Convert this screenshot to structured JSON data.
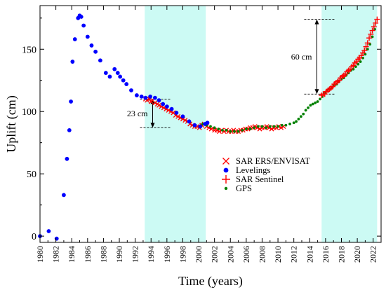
{
  "chart_data": {
    "type": "scatter",
    "title": "",
    "xlabel": "Time (years)",
    "ylabel": "Uplift (cm)",
    "xlim": [
      1980,
      2023
    ],
    "ylim": [
      -5,
      185
    ],
    "x_ticks": [
      1980,
      1982,
      1984,
      1986,
      1988,
      1990,
      1992,
      1994,
      1996,
      1998,
      2000,
      2002,
      2004,
      2006,
      2008,
      2010,
      2012,
      2014,
      2016,
      2018,
      2020,
      2022
    ],
    "y_ticks": [
      0,
      50,
      100,
      150
    ],
    "grid": false,
    "legend_position": "center-right",
    "shaded_periods": [
      {
        "from": 1993.2,
        "to": 2000.9,
        "color": "#ccfaf4"
      },
      {
        "from": 2015.5,
        "to": 2022.5,
        "color": "#ccfaf4"
      }
    ],
    "annotations": [
      {
        "label": "23 cm",
        "x": 1994.2,
        "from": 87,
        "to": 110
      },
      {
        "label": "60 cm",
        "x": 2014.9,
        "from": 114,
        "to": 174
      }
    ],
    "series": [
      {
        "name": "SAR ERS/ENVISAT",
        "marker": "x",
        "color": "#ff0000",
        "x": [
          1993.3,
          1993.5,
          1993.8,
          1994.0,
          1994.2,
          1994.5,
          1994.8,
          1995.0,
          1995.3,
          1995.6,
          1995.9,
          1996.2,
          1996.5,
          1996.8,
          1997.1,
          1997.4,
          1997.7,
          1998.0,
          1998.3,
          1998.6,
          1998.9,
          1999.2,
          1999.5,
          1999.8,
          2000.1,
          2000.4,
          2000.7,
          2001.0,
          2001.3,
          2001.6,
          2002.0,
          2002.3,
          2002.6,
          2002.9,
          2003.2,
          2003.5,
          2003.8,
          2004.1,
          2004.4,
          2004.7,
          2005.0,
          2005.3,
          2005.6,
          2005.9,
          2006.2,
          2006.5,
          2006.8,
          2007.1,
          2007.4,
          2007.7,
          2008.0,
          2008.3,
          2008.6,
          2008.9,
          2009.2,
          2009.5,
          2009.8,
          2010.1,
          2010.4,
          2010.7
        ],
        "y": [
          110,
          109,
          110,
          108,
          109,
          107,
          106,
          105,
          104,
          103,
          102,
          101,
          100,
          99,
          97,
          96,
          95,
          94,
          93,
          92,
          90,
          89,
          88,
          88,
          87,
          89,
          90,
          88,
          87,
          86,
          85,
          85,
          84,
          85,
          84,
          85,
          84,
          84,
          85,
          84,
          84,
          85,
          85,
          86,
          86,
          87,
          87,
          88,
          87,
          86,
          87,
          87,
          88,
          87,
          86,
          87,
          87,
          88,
          87,
          88
        ]
      },
      {
        "name": "Levelings",
        "marker": "circle",
        "color": "#0000ff",
        "x": [
          1980.0,
          1981.1,
          1982.1,
          1983.0,
          1983.4,
          1983.7,
          1983.9,
          1984.1,
          1984.4,
          1984.8,
          1985.0,
          1985.2,
          1985.5,
          1986.0,
          1986.5,
          1987.0,
          1987.6,
          1988.3,
          1988.8,
          1989.4,
          1989.8,
          1990.1,
          1990.5,
          1990.9,
          1991.5,
          1992.2,
          1992.8,
          1993.3,
          1993.9,
          1994.5,
          1995.0,
          1995.5,
          1996.0,
          1996.6,
          1997.2,
          1998.0,
          1998.8,
          1999.5,
          2000.2,
          2000.8,
          2001.1
        ],
        "y": [
          0,
          4,
          -2,
          33,
          62,
          85,
          108,
          140,
          158,
          175,
          177,
          176,
          169,
          160,
          153,
          148,
          141,
          131,
          128,
          134,
          131,
          128,
          125,
          122,
          117,
          113,
          112,
          111,
          112,
          111,
          109,
          106,
          104,
          102,
          99,
          96,
          92,
          89,
          88,
          90,
          91
        ]
      },
      {
        "name": "SAR Sentinel",
        "marker": "plus",
        "color": "#ff0000",
        "x": [
          2015.5,
          2015.7,
          2015.9,
          2016.1,
          2016.3,
          2016.5,
          2016.7,
          2016.9,
          2017.1,
          2017.3,
          2017.5,
          2017.7,
          2017.9,
          2018.1,
          2018.3,
          2018.5,
          2018.7,
          2018.9,
          2019.1,
          2019.3,
          2019.5,
          2019.7,
          2019.9,
          2020.1,
          2020.3,
          2020.5,
          2020.7,
          2020.9,
          2021.1,
          2021.3,
          2021.5,
          2021.7,
          2021.9,
          2022.1,
          2022.3,
          2022.5
        ],
        "y": [
          113,
          114,
          114,
          116,
          117,
          118,
          119,
          120,
          122,
          123,
          124,
          125,
          127,
          128,
          129,
          130,
          132,
          133,
          134,
          136,
          137,
          139,
          140,
          142,
          143,
          145,
          147,
          149,
          152,
          155,
          159,
          162,
          165,
          168,
          171,
          174
        ]
      },
      {
        "name": "GPS",
        "marker": "dot",
        "color": "#008000",
        "x": [
          2000.5,
          2001.0,
          2001.5,
          2002.0,
          2002.5,
          2003.0,
          2003.5,
          2004.0,
          2004.5,
          2005.0,
          2005.5,
          2006.0,
          2006.5,
          2007.0,
          2007.5,
          2008.0,
          2008.5,
          2009.0,
          2009.5,
          2010.0,
          2010.5,
          2011.0,
          2011.5,
          2012.0,
          2012.3,
          2012.6,
          2012.9,
          2013.2,
          2013.5,
          2013.8,
          2014.1,
          2014.4,
          2014.7,
          2015.0,
          2015.3,
          2015.6,
          2015.9,
          2016.2,
          2016.5,
          2016.8,
          2017.1,
          2017.4,
          2017.7,
          2018.0,
          2018.3,
          2018.6,
          2018.9,
          2019.2,
          2019.5,
          2019.8,
          2020.1,
          2020.4,
          2020.7,
          2021.0,
          2021.3,
          2021.6,
          2021.9,
          2022.2
        ],
        "y": [
          90,
          89,
          88,
          87,
          86,
          85,
          85,
          84,
          84,
          84,
          85,
          86,
          86,
          87,
          88,
          88,
          87,
          88,
          88,
          88,
          89,
          89,
          90,
          91,
          92,
          94,
          96,
          98,
          101,
          103,
          105,
          106,
          107,
          108,
          110,
          112,
          115,
          117,
          118,
          119,
          121,
          122,
          124,
          126,
          127,
          129,
          131,
          133,
          134,
          136,
          138,
          140,
          143,
          146,
          150,
          154,
          160,
          166
        ]
      }
    ]
  }
}
